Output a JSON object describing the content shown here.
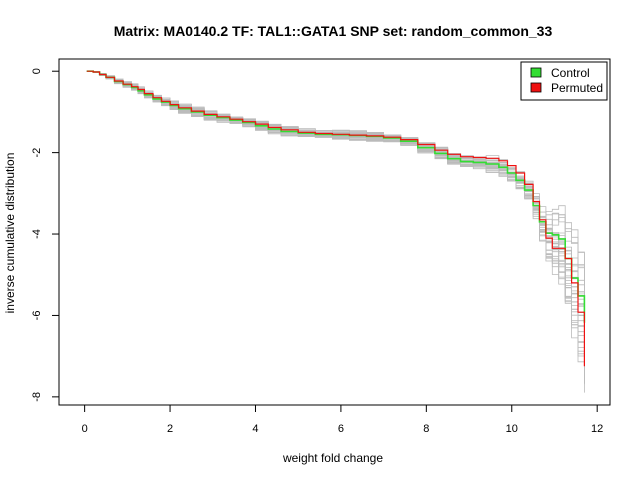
{
  "chart_data": {
    "type": "line",
    "title": "Matrix: MA0140.2 TF: TAL1::GATA1 SNP set: random_common_33",
    "xlabel": "weight fold change",
    "ylabel": "inverse cumulative distribution",
    "xlim": [
      -0.6,
      12.3
    ],
    "ylim": [
      -8.2,
      0.3
    ],
    "x_ticks": [
      0,
      2,
      4,
      6,
      8,
      10,
      12
    ],
    "y_ticks": [
      0,
      -2,
      -4,
      -6,
      -8
    ],
    "grid": false,
    "legend": {
      "position": "top-right",
      "entries": [
        "Control",
        "Permuted"
      ]
    },
    "series": [
      {
        "name": "Control",
        "color": "#33dd33",
        "x": [
          0.05,
          0.2,
          0.35,
          0.5,
          0.7,
          0.9,
          1.1,
          1.25,
          1.4,
          1.6,
          1.8,
          2.0,
          2.2,
          2.5,
          2.8,
          3.1,
          3.4,
          3.7,
          4.0,
          4.3,
          4.6,
          5.0,
          5.4,
          5.8,
          6.2,
          6.6,
          7.0,
          7.4,
          7.8,
          8.2,
          8.5,
          8.8,
          9.1,
          9.4,
          9.7,
          9.9,
          10.1,
          10.3,
          10.5,
          10.65,
          10.8,
          10.95,
          11.1,
          11.25,
          11.4,
          11.55,
          11.7
        ],
        "y": [
          0,
          -0.02,
          -0.08,
          -0.15,
          -0.25,
          -0.33,
          -0.4,
          -0.48,
          -0.58,
          -0.68,
          -0.76,
          -0.84,
          -0.92,
          -1.0,
          -1.08,
          -1.14,
          -1.2,
          -1.26,
          -1.34,
          -1.42,
          -1.48,
          -1.52,
          -1.55,
          -1.56,
          -1.58,
          -1.6,
          -1.64,
          -1.72,
          -1.88,
          -2.02,
          -2.15,
          -2.22,
          -2.24,
          -2.28,
          -2.36,
          -2.5,
          -2.68,
          -2.92,
          -3.3,
          -3.7,
          -3.98,
          -4.02,
          -4.12,
          -4.6,
          -5.08,
          -5.52,
          -6.18
        ]
      },
      {
        "name": "Permuted",
        "color": "#ee1111",
        "x": [
          0.05,
          0.2,
          0.35,
          0.5,
          0.7,
          0.9,
          1.1,
          1.25,
          1.4,
          1.6,
          1.8,
          2.0,
          2.2,
          2.5,
          2.8,
          3.1,
          3.4,
          3.7,
          4.0,
          4.3,
          4.6,
          5.0,
          5.4,
          5.8,
          6.2,
          6.6,
          7.0,
          7.4,
          7.8,
          8.2,
          8.5,
          8.8,
          9.1,
          9.4,
          9.7,
          9.9,
          10.1,
          10.3,
          10.5,
          10.65,
          10.8,
          10.95,
          11.1,
          11.25,
          11.4,
          11.55,
          11.7
        ],
        "y": [
          0,
          -0.02,
          -0.08,
          -0.15,
          -0.24,
          -0.32,
          -0.38,
          -0.45,
          -0.55,
          -0.65,
          -0.74,
          -0.82,
          -0.9,
          -0.98,
          -1.06,
          -1.12,
          -1.18,
          -1.24,
          -1.3,
          -1.38,
          -1.44,
          -1.5,
          -1.53,
          -1.55,
          -1.57,
          -1.59,
          -1.62,
          -1.68,
          -1.8,
          -1.94,
          -2.04,
          -2.1,
          -2.12,
          -2.14,
          -2.2,
          -2.32,
          -2.5,
          -2.78,
          -3.2,
          -3.65,
          -4.1,
          -4.35,
          -4.35,
          -4.6,
          -5.2,
          -5.92,
          -7.25
        ]
      }
    ],
    "background_series": {
      "color": "#bbbbbb",
      "count": 30
    }
  }
}
